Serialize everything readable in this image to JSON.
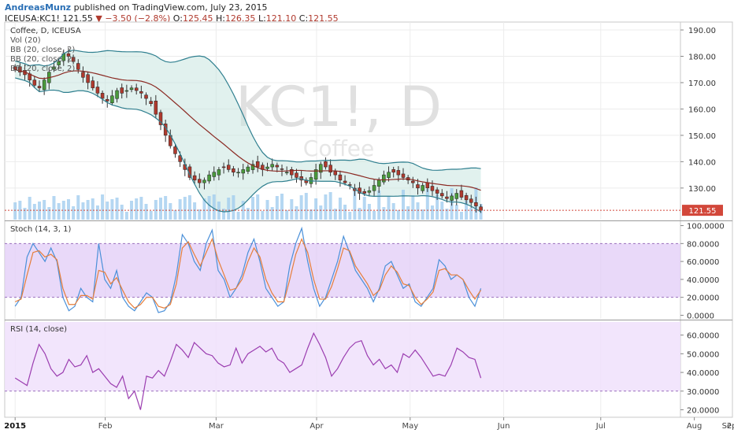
{
  "header": {
    "author": "AndreasMunz",
    "published": "published on TradingView.com, July 23, 2015",
    "symbol": "ICEUSA:KC1!",
    "last": "121.55",
    "change": "−3.50 (−2.8%)",
    "open_label": "O:",
    "open": "125.45",
    "high_label": "H:",
    "high": "126.35",
    "low_label": "L:",
    "low": "121.10",
    "close_label": "C:",
    "close": "121.55"
  },
  "colors": {
    "up_candle": "#4a9a3c",
    "down_candle": "#b03a2e",
    "band_fill": "#c8e6e0",
    "band_line": "#2f7f8f",
    "basis_line": "#8b2a23",
    "volume": "#9cc9ee",
    "stoch_k": "#4a90d9",
    "stoch_d": "#e67e3a",
    "stoch_zone": "#e2ccf7",
    "rsi_line": "#9b3db0",
    "rsi_zone": "#f0e0fb",
    "price_tag": "#d2473a"
  },
  "chart_data": [
    {
      "type": "candlestick",
      "pane": "price",
      "title": "Coffee, D, ICEUSA",
      "legend": [
        "Vol (20)",
        "BB (20, close, 2)",
        "BB (20, close, 2)",
        "BB (20, close, 2)"
      ],
      "watermark": "KC1!, D",
      "watermark_sub": "Coffee",
      "ylim": [
        118,
        193
      ],
      "yticks": [
        "190.00",
        "180.00",
        "170.00",
        "160.00",
        "150.00",
        "140.00",
        "130.00"
      ],
      "ytick_values": [
        190,
        180,
        170,
        160,
        150,
        140,
        130
      ],
      "last_price": "121.55",
      "x_range": [
        -3,
        192
      ],
      "x_labels": [
        "2015",
        "Feb",
        "Mar",
        "Apr",
        "May",
        "Jun",
        "Jul",
        "Aug",
        "Sep",
        "2"
      ],
      "x_label_days": [
        0,
        26,
        58,
        87,
        114,
        141,
        169,
        196,
        224,
        250
      ],
      "closes": [
        175,
        174,
        173,
        171,
        169,
        168,
        171,
        174,
        176,
        178,
        181,
        180,
        178,
        175,
        172,
        170,
        168,
        166,
        164,
        163,
        165,
        167,
        166,
        167,
        168,
        167,
        166,
        164,
        162,
        158,
        154,
        150,
        146,
        143,
        140,
        137,
        134,
        133,
        132,
        133,
        135,
        136,
        137,
        138,
        137,
        136,
        136,
        137,
        138,
        139,
        138,
        137,
        138,
        139,
        138,
        137,
        136,
        135,
        134,
        133,
        132,
        134,
        137,
        139,
        138,
        136,
        135,
        133,
        132,
        131,
        129,
        128,
        128,
        129,
        131,
        133,
        135,
        136,
        136,
        135,
        134,
        133,
        132,
        130,
        131,
        130,
        129,
        128,
        127,
        126,
        127,
        128,
        126.5,
        125.5,
        124.5,
        123.2,
        121.55
      ],
      "volume_label": "Vol (20)"
    },
    {
      "type": "line",
      "pane": "stoch",
      "title": "Stoch (14, 3, 1)",
      "ylim": [
        -4,
        104
      ],
      "yticks": [
        "100.0000",
        "80.0000",
        "60.0000",
        "40.0000",
        "20.0000",
        "0.0000"
      ],
      "ytick_values": [
        100,
        80,
        60,
        40,
        20,
        0
      ],
      "bands": [
        20,
        80
      ],
      "series": [
        {
          "name": "%K",
          "values": [
            10,
            20,
            65,
            80,
            70,
            60,
            75,
            60,
            20,
            5,
            10,
            30,
            20,
            15,
            80,
            40,
            30,
            50,
            20,
            10,
            5,
            15,
            25,
            20,
            3,
            5,
            15,
            45,
            90,
            80,
            60,
            50,
            80,
            95,
            50,
            40,
            20,
            30,
            45,
            70,
            85,
            60,
            30,
            20,
            10,
            15,
            55,
            80,
            97,
            60,
            30,
            10,
            20,
            40,
            60,
            88,
            70,
            50,
            40,
            30,
            15,
            30,
            55,
            60,
            45,
            30,
            35,
            15,
            10,
            20,
            30,
            62,
            55,
            40,
            45,
            40,
            20,
            10,
            30
          ]
        },
        {
          "name": "%D",
          "values": [
            15,
            18,
            45,
            70,
            72,
            65,
            68,
            62,
            30,
            12,
            12,
            22,
            22,
            18,
            50,
            48,
            35,
            42,
            28,
            15,
            8,
            12,
            20,
            20,
            10,
            8,
            12,
            35,
            75,
            82,
            68,
            55,
            70,
            85,
            62,
            45,
            28,
            30,
            40,
            60,
            75,
            65,
            40,
            25,
            15,
            15,
            40,
            68,
            85,
            70,
            40,
            18,
            18,
            32,
            52,
            75,
            72,
            55,
            45,
            35,
            22,
            28,
            45,
            55,
            48,
            35,
            33,
            20,
            12,
            18,
            26,
            50,
            52,
            45,
            45,
            40,
            28,
            18,
            28
          ]
        }
      ]
    },
    {
      "type": "line",
      "pane": "rsi",
      "title": "RSI (14, close)",
      "ylim": [
        16,
        67
      ],
      "yticks": [
        "60.0000",
        "50.0000",
        "40.0000",
        "30.0000",
        "20.0000"
      ],
      "ytick_values": [
        60,
        50,
        40,
        30,
        20
      ],
      "bands": [
        30,
        70
      ],
      "series": [
        {
          "name": "RSI",
          "values": [
            37,
            35,
            33,
            45,
            55,
            50,
            42,
            38,
            40,
            47,
            43,
            44,
            49,
            40,
            42,
            38,
            34,
            32,
            38,
            26,
            30,
            20,
            38,
            37,
            41,
            38,
            46,
            55,
            52,
            48,
            56,
            53,
            50,
            49,
            45,
            43,
            44,
            53,
            45,
            50,
            52,
            54,
            51,
            53,
            47,
            45,
            40,
            42,
            44,
            53,
            61,
            55,
            48,
            38,
            42,
            48,
            53,
            56,
            57,
            49,
            44,
            47,
            42,
            44,
            40,
            50,
            48,
            52,
            48,
            43,
            38,
            39,
            38,
            44,
            53,
            51,
            48,
            47,
            37
          ]
        }
      ]
    }
  ]
}
